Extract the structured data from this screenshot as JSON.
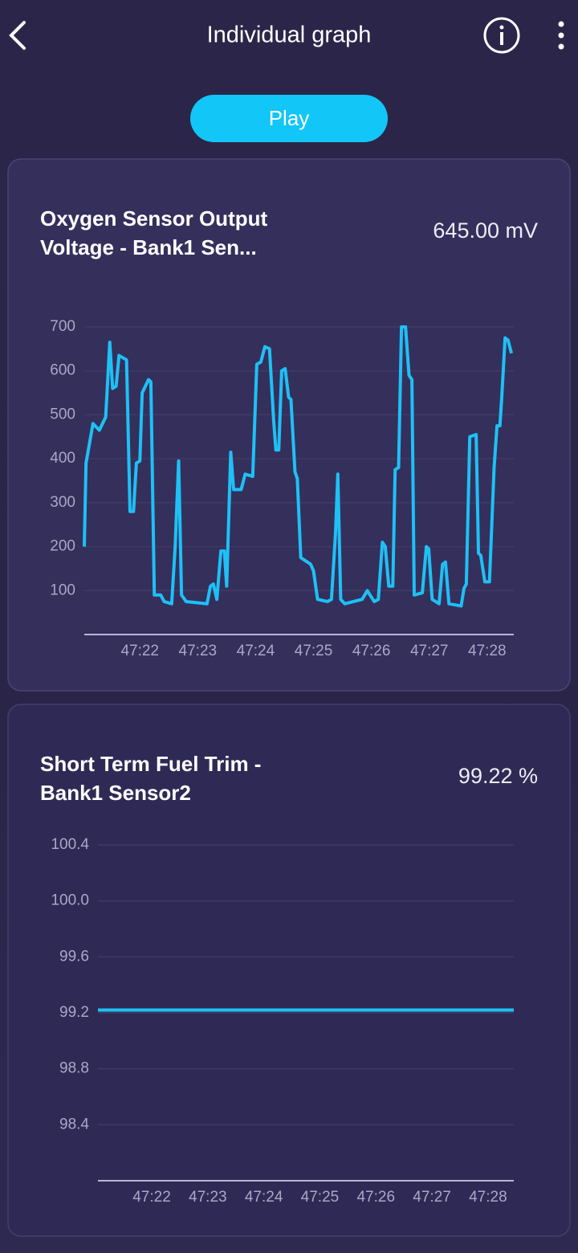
{
  "header": {
    "title": "Individual graph"
  },
  "play_button": "Play",
  "chart_data": [
    {
      "type": "line",
      "title": "Oxygen Sensor Output Voltage - Bank1 Sen...",
      "value_text": "645.00 mV",
      "color": "#1ec0f5",
      "grid": true,
      "xlim": [
        21.04,
        28.46
      ],
      "xticks": [
        {
          "value": 22,
          "label": "47:22"
        },
        {
          "value": 23,
          "label": "47:23"
        },
        {
          "value": 24,
          "label": "47:24"
        },
        {
          "value": 25,
          "label": "47:25"
        },
        {
          "value": 26,
          "label": "47:26"
        },
        {
          "value": 27,
          "label": "47:27"
        },
        {
          "value": 28,
          "label": "47:28"
        }
      ],
      "ylim": [
        0,
        700
      ],
      "yticks": [
        100,
        200,
        300,
        400,
        500,
        600,
        700
      ],
      "x": [
        21.04,
        21.07,
        21.19,
        21.3,
        21.41,
        21.48,
        21.53,
        21.59,
        21.64,
        21.77,
        21.83,
        21.89,
        21.94,
        22.0,
        22.04,
        22.15,
        22.19,
        22.25,
        22.36,
        22.42,
        22.55,
        22.61,
        22.67,
        22.72,
        22.8,
        23.16,
        23.22,
        23.27,
        23.33,
        23.4,
        23.46,
        23.5,
        23.57,
        23.62,
        23.75,
        23.82,
        23.95,
        24.02,
        24.09,
        24.16,
        24.24,
        24.31,
        24.35,
        24.4,
        24.45,
        24.51,
        24.57,
        24.61,
        24.68,
        24.72,
        24.78,
        24.95,
        25.0,
        25.07,
        25.24,
        25.31,
        25.38,
        25.42,
        25.47,
        25.54,
        25.84,
        25.93,
        26.0,
        26.05,
        26.12,
        26.19,
        26.24,
        26.3,
        26.37,
        26.41,
        26.47,
        26.52,
        26.59,
        26.65,
        26.7,
        26.74,
        26.88,
        26.95,
        26.99,
        27.05,
        27.17,
        27.23,
        27.28,
        27.34,
        27.55,
        27.6,
        27.64,
        27.7,
        27.81,
        27.85,
        27.89,
        27.96,
        28.04,
        28.12,
        28.17,
        28.22,
        28.25,
        28.31,
        28.36,
        28.42
      ],
      "values": [
        200,
        390,
        480,
        465,
        495,
        665,
        560,
        565,
        635,
        625,
        280,
        280,
        390,
        395,
        550,
        580,
        575,
        90,
        90,
        75,
        70,
        200,
        395,
        90,
        75,
        70,
        110,
        115,
        80,
        190,
        190,
        110,
        415,
        330,
        330,
        365,
        360,
        615,
        620,
        655,
        650,
        490,
        420,
        420,
        600,
        605,
        540,
        535,
        370,
        355,
        175,
        160,
        145,
        80,
        75,
        80,
        230,
        365,
        80,
        70,
        80,
        100,
        85,
        75,
        80,
        210,
        200,
        110,
        110,
        375,
        380,
        700,
        700,
        590,
        580,
        90,
        95,
        200,
        195,
        80,
        70,
        160,
        165,
        70,
        65,
        105,
        115,
        450,
        455,
        185,
        180,
        120,
        120,
        380,
        475,
        475,
        535,
        675,
        670,
        640
      ]
    },
    {
      "type": "line",
      "title": "Short Term Fuel Trim - Bank1 Sensor2",
      "value_text": "99.22 %",
      "color": "#1ec0f5",
      "grid": true,
      "xlim": [
        21.04,
        28.46
      ],
      "xticks": [
        {
          "value": 22,
          "label": "47:22"
        },
        {
          "value": 23,
          "label": "47:23"
        },
        {
          "value": 24,
          "label": "47:24"
        },
        {
          "value": 25,
          "label": "47:25"
        },
        {
          "value": 26,
          "label": "47:26"
        },
        {
          "value": 27,
          "label": "47:27"
        },
        {
          "value": 28,
          "label": "47:28"
        }
      ],
      "ylim": [
        98.0,
        100.4
      ],
      "yticks": [
        98.4,
        98.8,
        99.2,
        99.6,
        {
          "value": 100,
          "label": "100.0"
        },
        100.4
      ],
      "x": [
        21.04,
        28.46
      ],
      "values": [
        99.22,
        99.22
      ]
    }
  ]
}
